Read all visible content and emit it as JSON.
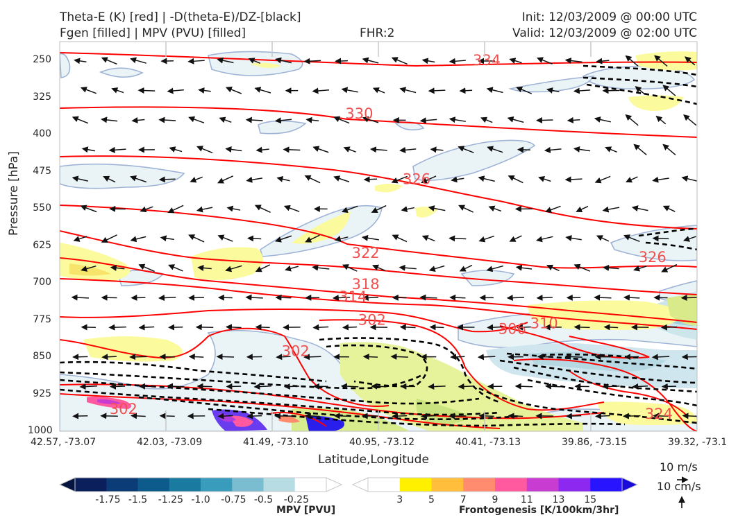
{
  "header": {
    "title_left_1": "Theta-E (K) [red] | -D(theta-E)/DZ-[black]",
    "title_left_2": "Fgen [filled] | MPV (PVU) [filled]",
    "fhr": "FHR:2",
    "init": "Init: 12/03/2009 @ 00:00 UTC",
    "valid": "Valid: 12/03/2009 @ 02:00 UTC"
  },
  "axes": {
    "ylabel": "Pressure [hPa]",
    "xlabel": "Latitude,Longitude"
  },
  "chart_data": {
    "type": "cross-section",
    "y_ticks": [
      "250",
      "325",
      "400",
      "475",
      "550",
      "625",
      "700",
      "775",
      "850",
      "925",
      "1000"
    ],
    "y_values": [
      250,
      325,
      400,
      475,
      550,
      625,
      700,
      775,
      850,
      925,
      1000
    ],
    "ylim": [
      1000,
      212
    ],
    "x_ticks": [
      "42.57, -73.07",
      "42.03, -73.09",
      "41.49, -73.10",
      "40.95, -73.12",
      "40.41, -73.13",
      "39.86, -73.15",
      "39.32, -73.1"
    ],
    "theta_e_labels": [
      {
        "text": "334",
        "p": 250,
        "xi": 0.67
      },
      {
        "text": "330",
        "p": 358,
        "xi": 0.47
      },
      {
        "text": "326",
        "p": 490,
        "xi": 0.56
      },
      {
        "text": "326",
        "p": 648,
        "xi": 0.93
      },
      {
        "text": "322",
        "p": 640,
        "xi": 0.48
      },
      {
        "text": "318",
        "p": 703,
        "xi": 0.48
      },
      {
        "text": "314",
        "p": 728,
        "xi": 0.46
      },
      {
        "text": "302",
        "p": 775,
        "xi": 0.49
      },
      {
        "text": "310",
        "p": 782,
        "xi": 0.76
      },
      {
        "text": "306",
        "p": 793,
        "xi": 0.71
      },
      {
        "text": "302",
        "p": 838,
        "xi": 0.37
      },
      {
        "text": "302",
        "p": 955,
        "xi": 0.1
      },
      {
        "text": "324",
        "p": 965,
        "xi": 0.94
      }
    ],
    "colorbar_mpv": {
      "label": "MPV [PVU]",
      "ticks": [
        "-1.75",
        "-1.5",
        "-1.25",
        "-1.0",
        "-0.75",
        "-0.5",
        "-0.25"
      ],
      "colors": [
        "#0a1f5c",
        "#0b3c78",
        "#0d5a8c",
        "#1a7aa0",
        "#3a9cbc",
        "#7abcd0",
        "#b8dce4",
        "#ffffff"
      ]
    },
    "colorbar_fgen": {
      "label": "Frontogenesis [K/100km/3hr]",
      "ticks": [
        "3",
        "5",
        "7",
        "9",
        "11",
        "13",
        "15"
      ],
      "colors": [
        "#ffffff",
        "#fff000",
        "#ffbe3c",
        "#ff8c6e",
        "#ff5aa0",
        "#c83cd2",
        "#8c28f0",
        "#2814ff"
      ]
    }
  },
  "wind_key": {
    "u_label": "10 m/s",
    "w_label": "10 cm/s"
  },
  "colors": {
    "theta_e": "#ff0000",
    "dtheta_dz": "#000000",
    "mpv_fill": "#eaf4f7",
    "fgen_fill": "#fbfa9c"
  }
}
